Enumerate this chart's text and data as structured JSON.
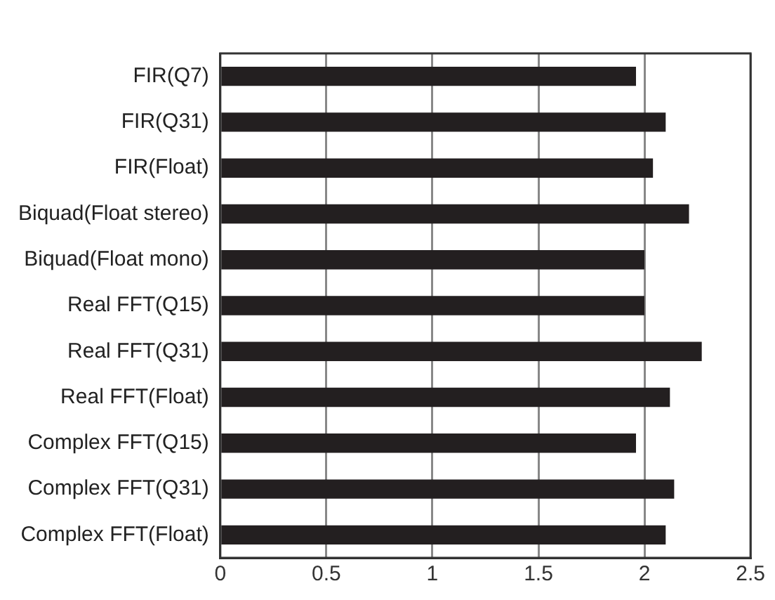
{
  "chart_data": {
    "type": "bar",
    "orientation": "horizontal",
    "categories": [
      "FIR(Q7)",
      "FIR(Q31)",
      "FIR(Float)",
      "Biquad(Float stereo)",
      "Biquad(Float mono)",
      "Real FFT(Q15)",
      "Real FFT(Q31)",
      "Real FFT(Float)",
      "Complex FFT(Q15)",
      "Complex FFT(Q31)",
      "Complex FFT(Float)"
    ],
    "values": [
      1.96,
      2.1,
      2.04,
      2.21,
      2.0,
      2.0,
      2.27,
      2.12,
      1.96,
      2.14,
      2.1
    ],
    "color": "#231f20",
    "xlim": [
      0,
      2.5
    ],
    "xticks": [
      0,
      0.5,
      1,
      1.5,
      2,
      2.5
    ],
    "grid": "x"
  }
}
